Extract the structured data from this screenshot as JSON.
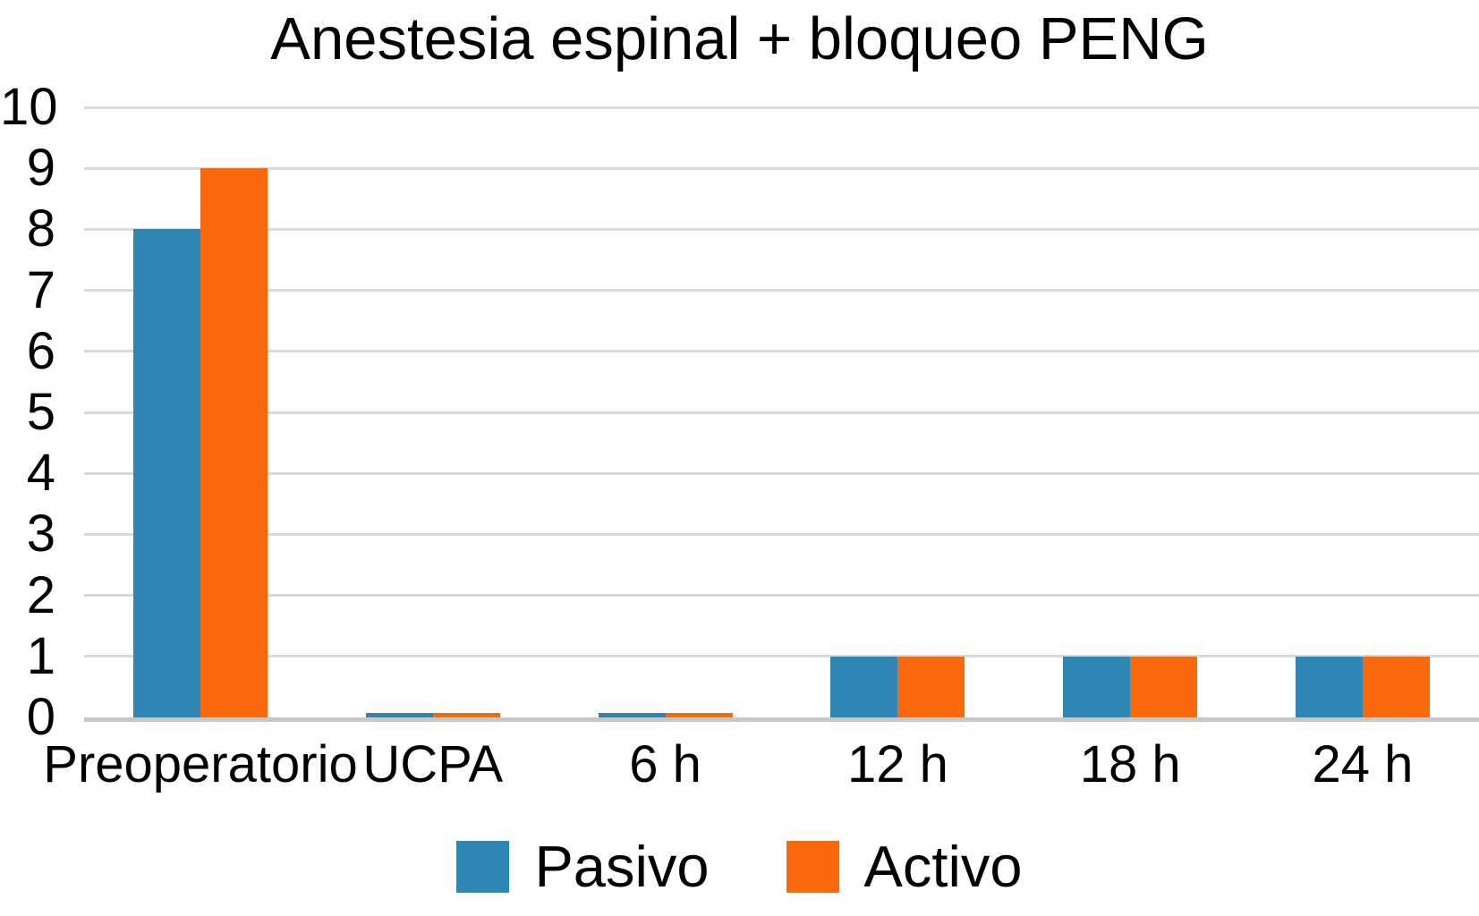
{
  "chart_data": {
    "type": "bar",
    "title": "Anestesia espinal + bloqueo PENG",
    "categories": [
      "Preoperatorio",
      "UCPA",
      "6 h",
      "12 h",
      "18 h",
      "24 h"
    ],
    "series": [
      {
        "name": "Pasivo",
        "color": "#2E86B4",
        "values": [
          8,
          0,
          0,
          1,
          1,
          1
        ]
      },
      {
        "name": "Activo",
        "color": "#F7690C",
        "values": [
          9,
          0,
          0,
          1,
          1,
          1
        ]
      }
    ],
    "xlabel": "",
    "ylabel": "",
    "ylim": [
      0,
      10
    ],
    "ytick_labels": [
      "0",
      "1",
      "2",
      "3",
      "4",
      "5",
      "6",
      "7",
      "8",
      "9",
      "10"
    ],
    "grid": true,
    "legend_position": "bottom",
    "zero_values_drawn_as_hairline_slivers": true
  },
  "colors": {
    "pasivo_blue": "#2E86B4",
    "activo_orange": "#F7690C",
    "gridline": "#D9D9D9",
    "axis_baseline": "#C8C8C8",
    "text": "#000000",
    "background": "#FFFFFF"
  }
}
